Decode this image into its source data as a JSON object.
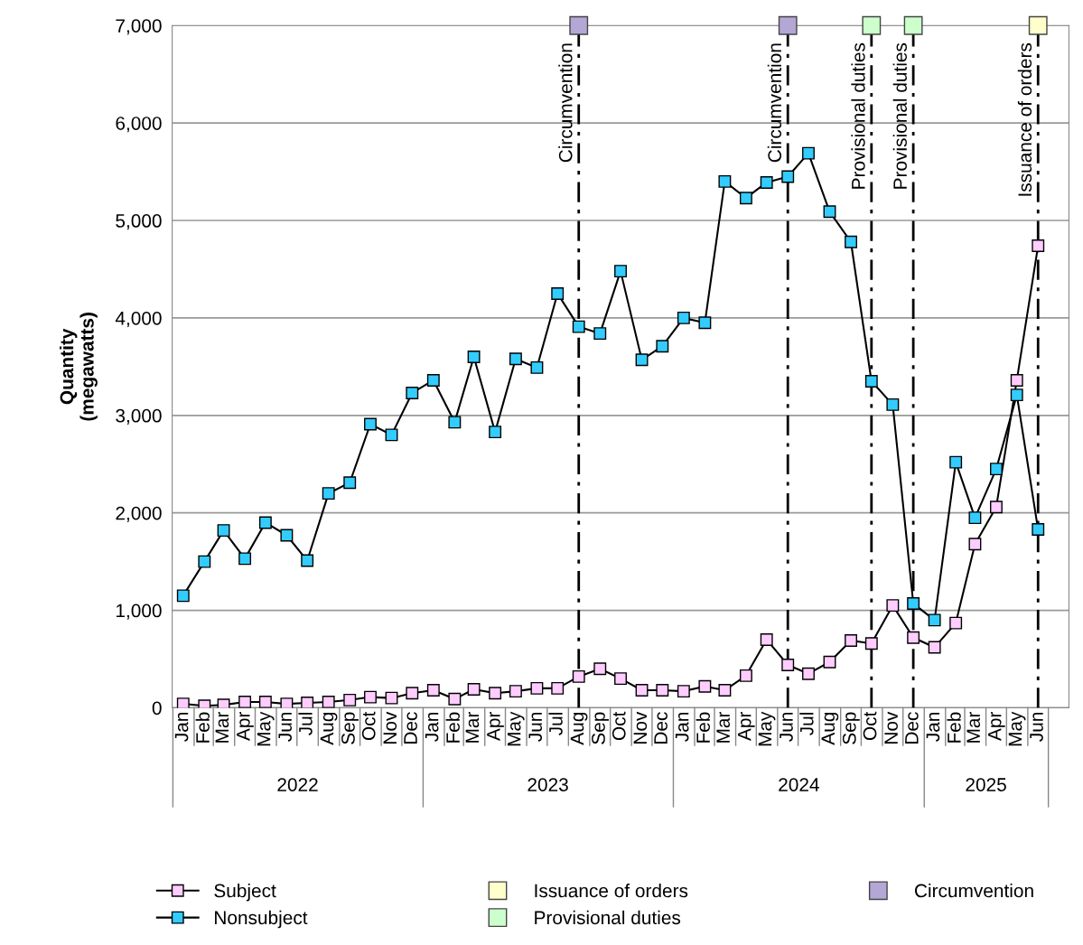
{
  "chart_data": {
    "type": "line",
    "x": [
      "2022-01",
      "2022-02",
      "2022-03",
      "2022-04",
      "2022-05",
      "2022-06",
      "2022-07",
      "2022-08",
      "2022-09",
      "2022-10",
      "2022-11",
      "2022-12",
      "2023-01",
      "2023-02",
      "2023-03",
      "2023-04",
      "2023-05",
      "2023-06",
      "2023-07",
      "2023-08",
      "2023-09",
      "2023-10",
      "2023-11",
      "2023-12",
      "2024-01",
      "2024-02",
      "2024-03",
      "2024-04",
      "2024-05",
      "2024-06",
      "2024-07",
      "2024-08",
      "2024-09",
      "2024-10",
      "2024-11",
      "2024-12",
      "2025-01",
      "2025-02",
      "2025-03",
      "2025-04",
      "2025-05",
      "2025-06"
    ],
    "series": [
      {
        "name": "Subject",
        "color": "#ffccff",
        "values": [
          40,
          20,
          30,
          60,
          60,
          40,
          50,
          60,
          80,
          110,
          100,
          150,
          180,
          90,
          190,
          150,
          170,
          200,
          200,
          320,
          400,
          300,
          180,
          180,
          170,
          220,
          180,
          330,
          700,
          440,
          350,
          470,
          690,
          660,
          1050,
          720,
          620,
          870,
          1680,
          2060,
          3360,
          4740
        ]
      },
      {
        "name": "Nonsubject",
        "color": "#33ccff",
        "values": [
          1150,
          1500,
          1820,
          1530,
          1900,
          1770,
          1510,
          2200,
          2310,
          2910,
          2800,
          3230,
          3360,
          2930,
          3600,
          2830,
          3580,
          3490,
          4250,
          3910,
          3840,
          4480,
          3570,
          3710,
          4000,
          3950,
          5400,
          5230,
          5390,
          5450,
          5690,
          5090,
          4780,
          3350,
          3110,
          1070,
          900,
          2520,
          1950,
          2450,
          3210,
          1830
        ]
      },
      {
        "name": "Issuance of orders",
        "type": "scatter",
        "color": "#ffffcc",
        "x": [
          "2025-06"
        ],
        "values": [
          7000
        ]
      },
      {
        "name": "Provisional duties",
        "type": "scatter",
        "color": "#ccffcc",
        "x": [
          "2024-10",
          "2024-12"
        ],
        "values": [
          7000,
          7000
        ]
      },
      {
        "name": "Circumvention",
        "type": "scatter",
        "color": "#b4a7d6",
        "x": [
          "2023-08",
          "2024-06"
        ],
        "values": [
          7000,
          7000
        ]
      }
    ],
    "marker": "square",
    "line_style": "solid",
    "xlim": [
      "2021-12-16",
      "2025-07-16"
    ],
    "xticks": [
      {
        "value": "2022-01",
        "label": "Jan"
      },
      {
        "value": "2022-02",
        "label": "Feb"
      },
      {
        "value": "2022-03",
        "label": "Mar"
      },
      {
        "value": "2022-04",
        "label": "Apr"
      },
      {
        "value": "2022-05",
        "label": "May"
      },
      {
        "value": "2022-06",
        "label": "Jun"
      },
      {
        "value": "2022-07",
        "label": "Jul"
      },
      {
        "value": "2022-08",
        "label": "Aug"
      },
      {
        "value": "2022-09",
        "label": "Sep"
      },
      {
        "value": "2022-10",
        "label": "Oct"
      },
      {
        "value": "2022-11",
        "label": "Nov"
      },
      {
        "value": "2022-12",
        "label": "Dec"
      },
      {
        "value": "2023-01",
        "label": "Jan"
      },
      {
        "value": "2023-02",
        "label": "Feb"
      },
      {
        "value": "2023-03",
        "label": "Mar"
      },
      {
        "value": "2023-04",
        "label": "Apr"
      },
      {
        "value": "2023-05",
        "label": "May"
      },
      {
        "value": "2023-06",
        "label": "Jun"
      },
      {
        "value": "2023-07",
        "label": "Jul"
      },
      {
        "value": "2023-08",
        "label": "Aug"
      },
      {
        "value": "2023-09",
        "label": "Sep"
      },
      {
        "value": "2023-10",
        "label": "Oct"
      },
      {
        "value": "2023-11",
        "label": "Nov"
      },
      {
        "value": "2023-12",
        "label": "Dec"
      },
      {
        "value": "2024-01",
        "label": "Jan"
      },
      {
        "value": "2024-02",
        "label": "Feb"
      },
      {
        "value": "2024-03",
        "label": "Mar"
      },
      {
        "value": "2024-04",
        "label": "Apr"
      },
      {
        "value": "2024-05",
        "label": "May"
      },
      {
        "value": "2024-06",
        "label": "Jun"
      },
      {
        "value": "2024-07",
        "label": "Jul"
      },
      {
        "value": "2024-08",
        "label": "Aug"
      },
      {
        "value": "2024-09",
        "label": "Sep"
      },
      {
        "value": "2024-10",
        "label": "Oct"
      },
      {
        "value": "2024-11",
        "label": "Nov"
      },
      {
        "value": "2024-12",
        "label": "Dec"
      },
      {
        "value": "2025-01",
        "label": "Jan"
      },
      {
        "value": "2025-02",
        "label": "Feb"
      },
      {
        "value": "2025-03",
        "label": "Mar"
      },
      {
        "value": "2025-04",
        "label": "Apr"
      },
      {
        "value": "2025-05",
        "label": "May"
      },
      {
        "value": "2025-06",
        "label": "Jun"
      }
    ],
    "annotations": [
      "2022",
      "2023",
      "2024",
      "2025"
    ],
    "ylabel": "Quantity\n(megawatts)",
    "ylim": [
      0,
      7000
    ],
    "yticks": [
      0,
      {
        "value": 1000,
        "label": "1,000"
      },
      {
        "value": 2000,
        "label": "2,000"
      },
      {
        "value": 3000,
        "label": "3,000"
      },
      {
        "value": 4000,
        "label": "4,000"
      },
      {
        "value": 5000,
        "label": "5,000"
      },
      {
        "value": 6000,
        "label": "6,000"
      },
      {
        "value": 7000,
        "label": "7,000"
      }
    ],
    "grid": "y",
    "legend": "bottom",
    "ref_lines": [
      {
        "axis": "x",
        "value": "2025-06",
        "label": "Issuance of orders",
        "color": "#000000",
        "line_style": "dashdot"
      },
      {
        "axis": "x",
        "value": "2024-10",
        "label": "Provisional duties",
        "color": "#000000",
        "line_style": "dashdot"
      },
      {
        "axis": "x",
        "value": "2024-12",
        "label": "Provisional duties",
        "color": "#000000",
        "line_style": "dashdot"
      },
      {
        "axis": "x",
        "value": "2023-08",
        "label": "Circumvention",
        "color": "#000000",
        "line_style": "dashdot"
      },
      {
        "axis": "x",
        "value": "2024-06",
        "label": "Circumvention",
        "color": "#000000",
        "line_style": "dashdot"
      }
    ]
  }
}
